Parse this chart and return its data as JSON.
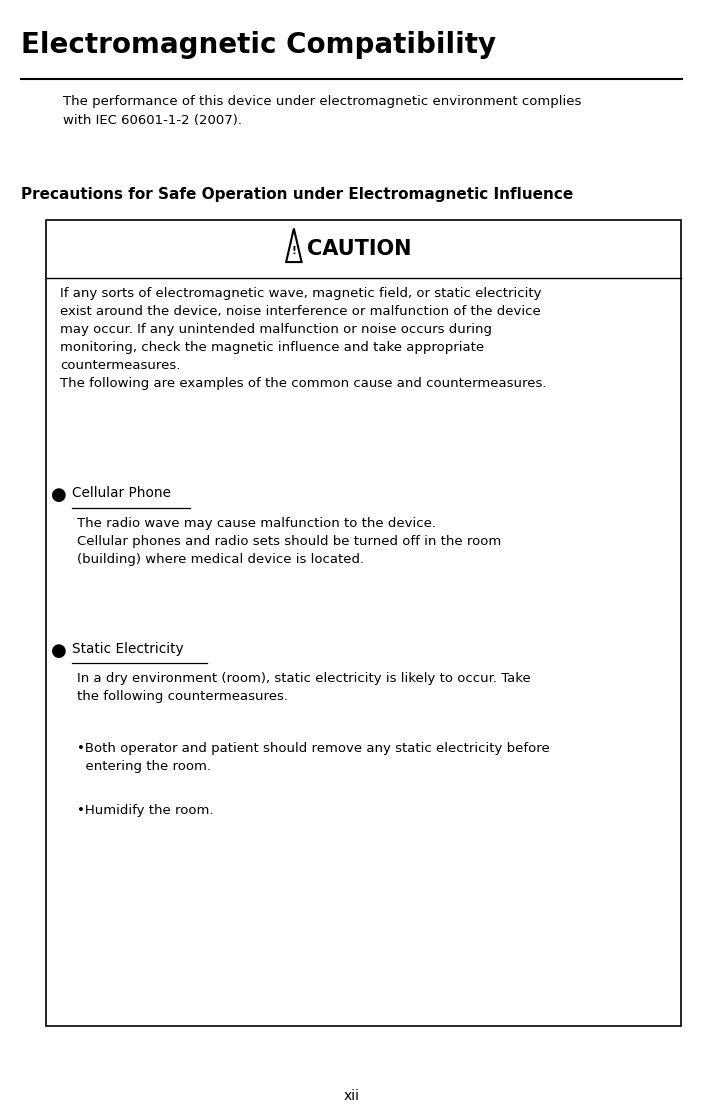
{
  "title": "Electromagnetic Compatibility",
  "intro_text": "The performance of this device under electromagnetic environment complies\nwith IEC 60601-1-2 (2007).",
  "section_title": "Precautions for Safe Operation under Electromagnetic Influence",
  "caution_label": "CAUTION",
  "body_text": "If any sorts of electromagnetic wave, magnetic field, or static electricity\nexist around the device, noise interference or malfunction of the device\nmay occur. If any unintended malfunction or noise occurs during\nmonitoring, check the magnetic influence and take appropriate\ncountermeasures.\nThe following are examples of the common cause and countermeasures.",
  "bullet1_header": "Cellular Phone",
  "bullet1_text": "The radio wave may cause malfunction to the device.\nCellular phones and radio sets should be turned off in the room\n(building) where medical device is located.",
  "bullet2_header": "Static Electricity",
  "bullet2_text": "In a dry environment (room), static electricity is likely to occur. Take\nthe following countermeasures.",
  "sub_bullet1": "•Both operator and patient should remove any static electricity before\n  entering the room.",
  "sub_bullet2": "•Humidify the room.",
  "page_number": "xii",
  "bg_color": "#ffffff",
  "text_color": "#000000",
  "box_border_color": "#000000"
}
